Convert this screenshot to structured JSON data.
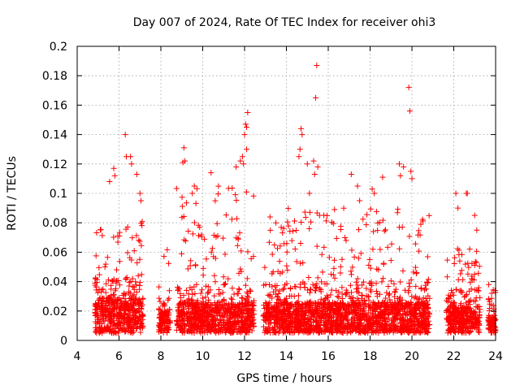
{
  "chart_data": {
    "type": "scatter",
    "title": "Day 007 of 2024, Rate Of TEC Index for receiver ohi3",
    "xlabel": "GPS time / hours",
    "ylabel": "ROTI / TECUs",
    "xlim": [
      4,
      24
    ],
    "ylim": [
      0,
      0.2
    ],
    "xticks": [
      4,
      6,
      8,
      10,
      12,
      14,
      16,
      18,
      20,
      22,
      24
    ],
    "yticks": [
      0,
      0.02,
      0.04,
      0.06,
      0.08,
      0.1,
      0.12,
      0.14,
      0.16,
      0.18,
      0.2
    ],
    "ytick_labels": [
      "0",
      "0.02",
      "0.04",
      "0.06",
      "0.08",
      "0.1",
      "0.12",
      "0.14",
      "0.16",
      "0.18",
      "0.2"
    ],
    "grid": true,
    "marker": "plus",
    "color": "#ff0000",
    "series": [
      {
        "segments": [
          {
            "x0": 4.85,
            "x1": 7.15,
            "base": 0.005,
            "peak": 0.045,
            "max": 0.085
          },
          {
            "x0": 7.9,
            "x1": 8.45,
            "base": 0.005,
            "peak": 0.03,
            "max": 0.065
          },
          {
            "x0": 8.75,
            "x1": 12.45,
            "base": 0.005,
            "peak": 0.04,
            "max": 0.105
          },
          {
            "x0": 12.9,
            "x1": 20.85,
            "base": 0.005,
            "peak": 0.04,
            "max": 0.09
          },
          {
            "x0": 21.65,
            "x1": 23.25,
            "base": 0.005,
            "peak": 0.035,
            "max": 0.065
          },
          {
            "x0": 23.65,
            "x1": 24.0,
            "base": 0.005,
            "peak": 0.025,
            "max": 0.038
          }
        ],
        "x": [
          6.3,
          6.35,
          6.55,
          6.6,
          5.75,
          5.8,
          5.55,
          6.85,
          7.0,
          7.05,
          9.1,
          9.15,
          9.05,
          9.6,
          9.5,
          10.4,
          11.6,
          11.8,
          11.9,
          12.1,
          12.1,
          12.05,
          12.0,
          11.95,
          12.15,
          13.5,
          14.7,
          14.75,
          14.65,
          14.6,
          15.0,
          15.1,
          15.3,
          15.35,
          15.4,
          15.45,
          15.5,
          16.3,
          17.1,
          17.4,
          17.5,
          18.1,
          18.2,
          18.6,
          19.4,
          19.45,
          19.6,
          19.85,
          19.9,
          19.95,
          20.0,
          22.1,
          22.2,
          22.6,
          22.65,
          23.0,
          23.1
        ],
        "y": [
          0.14,
          0.125,
          0.125,
          0.12,
          0.117,
          0.112,
          0.108,
          0.113,
          0.1,
          0.095,
          0.131,
          0.122,
          0.121,
          0.105,
          0.1,
          0.114,
          0.118,
          0.122,
          0.125,
          0.13,
          0.145,
          0.147,
          0.14,
          0.12,
          0.155,
          0.08,
          0.144,
          0.14,
          0.13,
          0.125,
          0.12,
          0.1,
          0.122,
          0.113,
          0.165,
          0.187,
          0.118,
          0.089,
          0.113,
          0.105,
          0.095,
          0.103,
          0.1,
          0.111,
          0.12,
          0.112,
          0.118,
          0.172,
          0.156,
          0.115,
          0.11,
          0.1,
          0.09,
          0.1,
          0.1,
          0.085,
          0.075
        ]
      }
    ]
  }
}
